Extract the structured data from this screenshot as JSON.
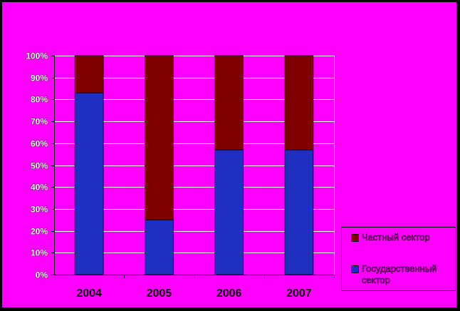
{
  "chart_data": {
    "type": "bar",
    "stacked": true,
    "normalized_percent": true,
    "categories": [
      "2004",
      "2005",
      "2006",
      "2007"
    ],
    "series": [
      {
        "name": "Государственный сектор",
        "color": "#1F2FBF",
        "values": [
          83,
          25,
          57,
          57
        ]
      },
      {
        "name": "Частный сектор",
        "color": "#800000",
        "values": [
          17,
          75,
          43,
          43
        ]
      }
    ],
    "ylim": [
      0,
      100
    ],
    "yticks": [
      "0%",
      "10%",
      "20%",
      "30%",
      "40%",
      "50%",
      "60%",
      "70%",
      "80%",
      "90%",
      "100%"
    ],
    "grid": true,
    "legend_position": "bottom-right",
    "background_color": "#FF00FF",
    "grid_color": "#FFFFFF"
  },
  "legend": {
    "items": [
      {
        "label": "Частный сектор",
        "color": "#800000"
      },
      {
        "label": "Государственный сектор",
        "color": "#1F2FBF"
      }
    ]
  }
}
